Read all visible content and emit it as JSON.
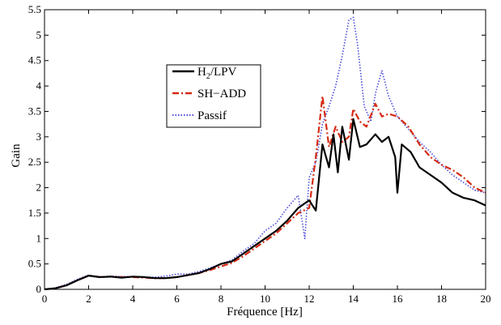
{
  "chart_data": {
    "type": "line",
    "xlabel": "Fréquence [Hz]",
    "ylabel": "Gain",
    "xlim": [
      0,
      20
    ],
    "ylim": [
      0,
      5.5
    ],
    "xticks": [
      0,
      2,
      4,
      6,
      8,
      10,
      12,
      14,
      16,
      18,
      20
    ],
    "yticks": [
      0,
      0.5,
      1,
      1.5,
      2,
      2.5,
      3,
      3.5,
      4,
      4.5,
      5,
      5.5
    ],
    "xtick_labels": [
      "0",
      "2",
      "4",
      "6",
      "8",
      "10",
      "12",
      "14",
      "16",
      "18",
      "20"
    ],
    "ytick_labels": [
      "0",
      "0.5",
      "1",
      "1.5",
      "2",
      "2.5",
      "3",
      "3.5",
      "4",
      "4.5",
      "5",
      "5.5"
    ],
    "grid": false,
    "legend_position": "upper-left",
    "series": [
      {
        "name": "H2/LPV",
        "legend_main": "H",
        "legend_sub": "2",
        "legend_rest": "/LPV",
        "color": "#000000",
        "style": "solid",
        "x": [
          0,
          0.5,
          1.0,
          1.5,
          2.0,
          2.5,
          3.0,
          3.5,
          4.0,
          4.5,
          5.0,
          5.5,
          6.0,
          6.5,
          7.0,
          7.5,
          8.0,
          8.5,
          9.0,
          9.5,
          10.0,
          10.5,
          11.0,
          11.5,
          12.0,
          12.3,
          12.6,
          12.9,
          13.1,
          13.3,
          13.5,
          13.8,
          14.0,
          14.3,
          14.6,
          15.0,
          15.3,
          15.6,
          15.9,
          16.0,
          16.2,
          16.6,
          17.0,
          17.5,
          18.0,
          18.5,
          19.0,
          19.5,
          20.0
        ],
        "y": [
          0.0,
          0.02,
          0.08,
          0.18,
          0.27,
          0.24,
          0.25,
          0.23,
          0.25,
          0.24,
          0.22,
          0.22,
          0.24,
          0.28,
          0.32,
          0.4,
          0.5,
          0.55,
          0.7,
          0.85,
          1.0,
          1.15,
          1.35,
          1.6,
          1.75,
          1.55,
          2.85,
          2.4,
          3.05,
          2.3,
          3.2,
          2.55,
          3.35,
          2.8,
          2.85,
          3.05,
          2.9,
          3.0,
          2.6,
          1.9,
          2.85,
          2.7,
          2.4,
          2.25,
          2.1,
          1.9,
          1.8,
          1.75,
          1.65
        ]
      },
      {
        "name": "SH−ADD",
        "legend_main": "SH−ADD",
        "color": "#d62b14",
        "style": "dashdot",
        "x": [
          0,
          0.5,
          1.0,
          1.5,
          2.0,
          2.5,
          3.0,
          3.5,
          4.0,
          4.5,
          5.0,
          5.5,
          6.0,
          6.5,
          7.0,
          7.5,
          8.0,
          8.5,
          9.0,
          9.5,
          10.0,
          10.5,
          11.0,
          11.5,
          12.0,
          12.3,
          12.6,
          12.9,
          13.2,
          13.5,
          13.8,
          14.0,
          14.3,
          14.6,
          15.0,
          15.3,
          15.6,
          16.0,
          16.5,
          17.0,
          17.5,
          18.0,
          18.5,
          19.0,
          19.5,
          20.0
        ],
        "y": [
          0.0,
          0.02,
          0.08,
          0.18,
          0.27,
          0.24,
          0.25,
          0.24,
          0.24,
          0.23,
          0.22,
          0.22,
          0.24,
          0.28,
          0.32,
          0.38,
          0.45,
          0.52,
          0.65,
          0.8,
          0.95,
          1.1,
          1.3,
          1.5,
          1.6,
          2.6,
          3.8,
          2.8,
          3.2,
          2.9,
          3.0,
          3.55,
          3.3,
          3.2,
          3.65,
          3.4,
          3.45,
          3.4,
          3.2,
          2.85,
          2.6,
          2.45,
          2.35,
          2.2,
          2.0,
          1.9
        ]
      },
      {
        "name": "Passif",
        "legend_main": "Passif",
        "color": "#4a4ad8",
        "style": "dotted",
        "x": [
          0,
          0.5,
          1.0,
          1.5,
          2.0,
          2.5,
          3.0,
          3.5,
          4.0,
          4.5,
          5.0,
          5.5,
          6.0,
          6.5,
          7.0,
          7.5,
          8.0,
          8.5,
          9.0,
          9.5,
          10.0,
          10.5,
          11.0,
          11.5,
          11.8,
          12.0,
          12.3,
          12.6,
          12.9,
          13.2,
          13.5,
          13.8,
          14.0,
          14.2,
          14.5,
          14.8,
          15.0,
          15.3,
          15.6,
          16.0,
          16.5,
          17.0,
          17.5,
          18.0,
          18.5,
          19.0,
          19.5,
          20.0
        ],
        "y": [
          0.0,
          0.03,
          0.1,
          0.2,
          0.28,
          0.24,
          0.26,
          0.25,
          0.25,
          0.24,
          0.24,
          0.26,
          0.3,
          0.3,
          0.35,
          0.42,
          0.5,
          0.58,
          0.75,
          0.9,
          1.15,
          1.3,
          1.6,
          1.85,
          1.0,
          2.2,
          2.5,
          3.25,
          3.6,
          4.0,
          4.6,
          5.3,
          5.35,
          4.8,
          3.6,
          3.3,
          3.85,
          4.3,
          3.8,
          3.4,
          3.15,
          2.9,
          2.7,
          2.45,
          2.25,
          2.1,
          1.95,
          1.9
        ]
      }
    ]
  }
}
